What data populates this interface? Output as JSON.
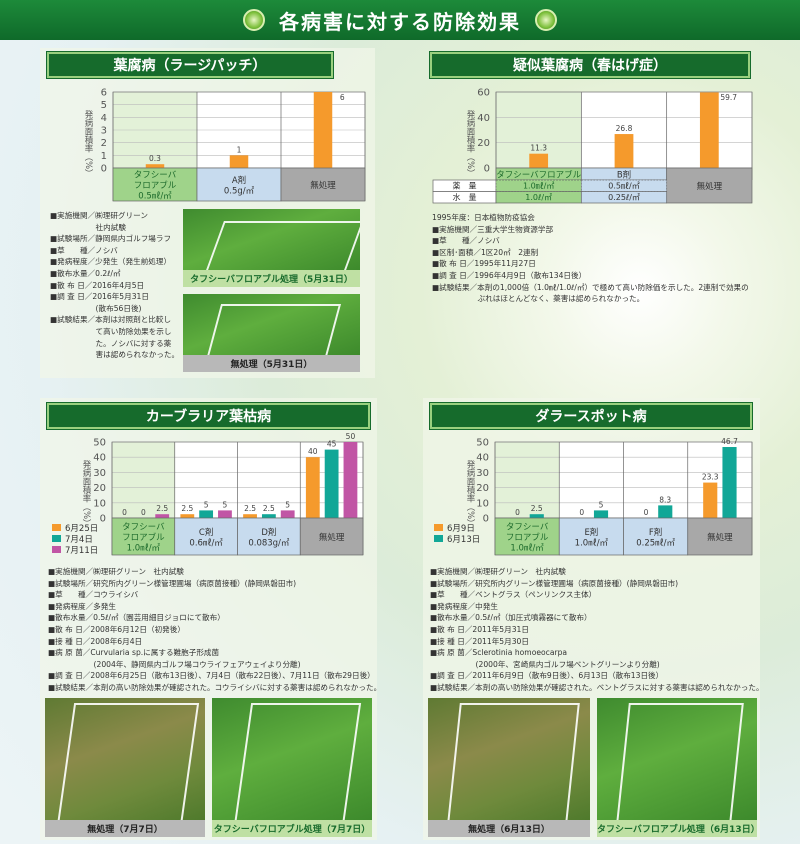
{
  "banner": {
    "title": "各病害に対する防除効果"
  },
  "colors": {
    "orange": "#f59a2c",
    "teal": "#11a797",
    "magenta": "#c155a5",
    "green_cell": "#9fd38a",
    "blue_cell": "#c7dbee",
    "gray_cell": "#a8a8a8",
    "header_green": "#166b2c"
  },
  "sections": [
    {
      "title": "葉腐病（ラージパッチ）",
      "info": [
        "■実施機関／㈱理研グリーン",
        "　　　　　　社内試験",
        "■試験場所／静岡県内ゴルフ場ラフ",
        "■草　　種／ノシバ",
        "■発病程度／少発生（発生前処理）",
        "■散布水量／0.2ℓ/㎡",
        "■散 布 日／2016年4月5日",
        "■調 査 日／2016年5月31日",
        "　　　　　　(散布56日後)",
        "■試験結果／本剤は対照剤と比較し",
        "　　　　　　て高い防除効果を示し",
        "　　　　　　た。ノシバに対する薬",
        "　　　　　　害は認められなかった。"
      ],
      "photos": [
        {
          "caption": "タフシーバフロアブル処理（5月31日）"
        },
        {
          "caption": "無処理（5月31日）"
        }
      ]
    },
    {
      "title": "疑似葉腐病（春はげ症）",
      "info": [
        "1995年度：日本植物防疫協会",
        "■実施機関／三重大学生物資源学部",
        "■草　　種／ノシバ",
        "■区制･面積／1区20㎡　2連制",
        "■散 布 日／1995年11月27日",
        "■調 査 日／1996年4月9日（散布134日後）",
        "■試験結果／本剤の1,000倍（1.0㎖/1.0ℓ/㎡）で極めて高い防除価を示した。2連制で効果の",
        "　　　　　　ぶれはほとんどなく、薬害は認められなかった。"
      ]
    },
    {
      "title": "カーブラリア葉枯病",
      "info": [
        "■実施機関／㈱理研グリーン　社内試験",
        "■試験場所／研究所内グリーン様管理圃場（病原菌接種）(静岡県磐田市)",
        "■草　　種／コウライシバ",
        "■発病程度／多発生",
        "■散布水量／0.5ℓ/㎡（園芸用細目ジョロにて散布）",
        "■散 布 日／2008年6月12日（初発後）",
        "■接 種 日／2008年6月4日",
        "■病 原 菌／Curvularia sp.に属する難胞子形成菌",
        "　　　　　　(2004年、静岡県内ゴルフ場コウライフェアウェイより分離)",
        "■調 査 日／2008年6月25日（散布13日後）、7月4日（散布22日後）、7月11日（散布29日後）",
        "■試験結果／本剤の高い防除効果が確認された。コウライシバに対する薬害は認められなかった。"
      ],
      "photos": [
        {
          "caption": "無処理（7月7日）"
        },
        {
          "caption": "タフシーバフロアブル処理（7月7日）"
        }
      ]
    },
    {
      "title": "ダラースポット病",
      "info": [
        "■実施機関／㈱理研グリーン　社内試験",
        "■試験場所／研究所内グリーン様管理圃場（病原菌接種）(静岡県磐田市)",
        "■草　　種／ベントグラス（ペンリンクス主体）",
        "■発病程度／中発生",
        "■散布水量／0.5ℓ/㎡（加圧式噴霧器にて散布）",
        "■散 布 日／2011年5月31日",
        "■接 種 日／2011年5月30日",
        "■病 原 菌／Sclerotinia homoeocarpa",
        "　　　　　　(2000年、宮崎県内ゴルフ場ベントグリーンより分離)",
        "■調 査 日／2011年6月9日（散布9日後）、6月13日（散布13日後）",
        "■試験結果／本剤の高い防除効果が確認された。ベントグラスに対する薬害は認められなかった。"
      ],
      "photos": [
        {
          "caption": "無処理（6月13日）"
        },
        {
          "caption": "タフシーバフロアブル処理（6月13日）"
        }
      ]
    }
  ],
  "chart_data": [
    {
      "type": "bar",
      "title": "葉腐病（ラージパッチ）",
      "ylabel": "発病面積率（%）",
      "ylim": [
        0,
        6
      ],
      "yticks": [
        0,
        1,
        2,
        3,
        4,
        5,
        6
      ],
      "grid": true,
      "categories": [
        {
          "lines": [
            "タフシーバ",
            "フロアブル",
            "0.5㎖/㎡"
          ],
          "cell": "green"
        },
        {
          "lines": [
            "A剤",
            "0.5g/㎡"
          ],
          "cell": "blue"
        },
        {
          "lines": [
            "無処理"
          ],
          "cell": "gray"
        }
      ],
      "series": [
        {
          "color": "orange",
          "values": [
            0.3,
            1,
            6
          ],
          "labels": [
            "0.3",
            "1",
            "6"
          ]
        }
      ]
    },
    {
      "type": "bar",
      "title": "疑似葉腐病（春はげ症）",
      "ylabel": "発病面積率（%）",
      "ylim": [
        0,
        60
      ],
      "yticks": [
        0,
        20,
        40,
        60
      ],
      "grid": true,
      "categories": [
        {
          "lines": [
            "タフシーバフロアブル"
          ],
          "cell": "green"
        },
        {
          "lines": [
            "B剤"
          ],
          "cell": "blue"
        },
        {
          "lines": [
            "無処理"
          ],
          "cell": "gray"
        }
      ],
      "rows": [
        {
          "label": "薬　量",
          "values": [
            "1.0㎖/㎡",
            "0.5㎖/㎡"
          ]
        },
        {
          "label": "水　量",
          "values": [
            "1.0ℓ/㎡",
            "0.25ℓ/㎡"
          ]
        }
      ],
      "series": [
        {
          "color": "orange",
          "values": [
            11.3,
            26.8,
            59.7
          ],
          "labels": [
            "11.3",
            "26.8",
            "59.7"
          ]
        }
      ]
    },
    {
      "type": "bar",
      "title": "カーブラリア葉枯病",
      "ylabel": "発病面積率（%）",
      "ylim": [
        0,
        50
      ],
      "yticks": [
        0,
        10,
        20,
        30,
        40,
        50
      ],
      "grid": true,
      "legend": "bottom-left",
      "categories": [
        {
          "lines": [
            "タフシーバ",
            "フロアブル",
            "1.0㎖/㎡"
          ],
          "cell": "green"
        },
        {
          "lines": [
            "C剤",
            "0.6㎖/㎡"
          ],
          "cell": "blue"
        },
        {
          "lines": [
            "D剤",
            "0.083g/㎡"
          ],
          "cell": "blue"
        },
        {
          "lines": [
            "無処理"
          ],
          "cell": "gray"
        }
      ],
      "series": [
        {
          "name": "6月25日",
          "color": "orange",
          "values": [
            0,
            2.5,
            2.5,
            40
          ],
          "labels": [
            "0",
            "2.5",
            "2.5",
            "40"
          ]
        },
        {
          "name": "7月4日",
          "color": "teal",
          "values": [
            0,
            5,
            2.5,
            45
          ],
          "labels": [
            "0",
            "5",
            "2.5",
            "45"
          ]
        },
        {
          "name": "7月11日",
          "color": "magenta",
          "values": [
            2.5,
            5,
            5,
            50
          ],
          "labels": [
            "2.5",
            "5",
            "5",
            "50"
          ]
        }
      ]
    },
    {
      "type": "bar",
      "title": "ダラースポット病",
      "ylabel": "発病面積率（%）",
      "ylim": [
        0,
        50
      ],
      "yticks": [
        0,
        10,
        20,
        30,
        40,
        50
      ],
      "grid": true,
      "legend": "bottom-left",
      "categories": [
        {
          "lines": [
            "タフシーバ",
            "フロアブル",
            "1.0㎖/㎡"
          ],
          "cell": "green"
        },
        {
          "lines": [
            "E剤",
            "1.0㎖/㎡"
          ],
          "cell": "blue"
        },
        {
          "lines": [
            "F剤",
            "0.25㎖/㎡"
          ],
          "cell": "blue"
        },
        {
          "lines": [
            "無処理"
          ],
          "cell": "gray"
        }
      ],
      "series": [
        {
          "name": "6月9日",
          "color": "orange",
          "values": [
            0,
            0,
            0,
            23.3
          ],
          "labels": [
            "0",
            "0",
            "0",
            "23.3"
          ]
        },
        {
          "name": "6月13日",
          "color": "teal",
          "values": [
            2.5,
            5,
            8.3,
            46.7
          ],
          "labels": [
            "2.5",
            "5",
            "8.3",
            "46.7"
          ]
        }
      ]
    }
  ]
}
